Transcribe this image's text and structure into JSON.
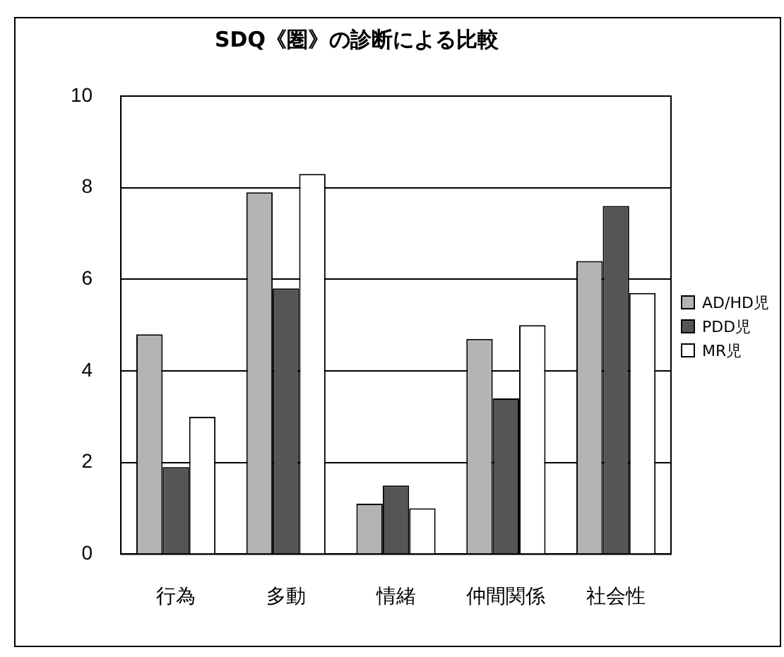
{
  "chart_data": {
    "type": "bar",
    "title": "SDQ《圏》の診断による比較",
    "categories": [
      "行為",
      "多動",
      "情緒",
      "仲間関係",
      "社会性"
    ],
    "series": [
      {
        "name": "AD/HD児",
        "color": "#b4b4b4",
        "values": [
          4.8,
          7.9,
          1.1,
          4.7,
          6.4
        ]
      },
      {
        "name": "PDD児",
        "color": "#555555",
        "values": [
          1.9,
          5.8,
          1.5,
          3.4,
          7.6
        ]
      },
      {
        "name": "MR児",
        "color": "#ffffff",
        "values": [
          3.0,
          8.3,
          1.0,
          5.0,
          5.7
        ]
      }
    ],
    "ylim": [
      0,
      10
    ],
    "yticks": [
      0,
      2,
      4,
      6,
      8,
      10
    ],
    "grid": "y",
    "legend": "right"
  }
}
